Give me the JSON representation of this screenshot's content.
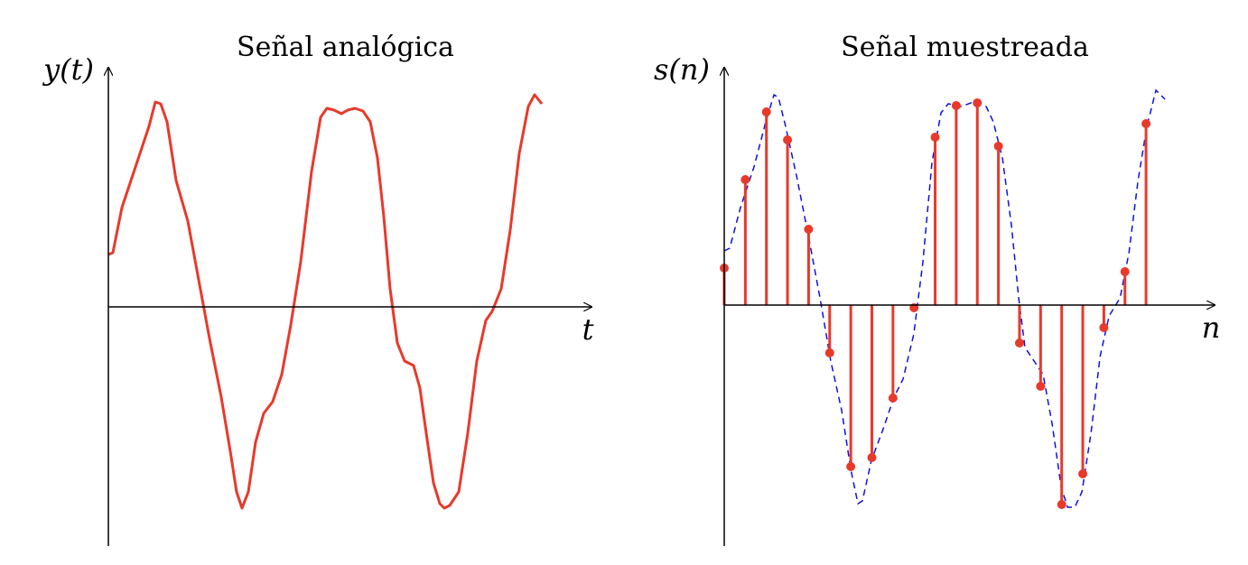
{
  "chart_data": [
    {
      "type": "line",
      "title": "Señal analógica",
      "ylabel": "y(t)",
      "xlabel": "t",
      "color": "#e8392b",
      "xlim": [
        0,
        5.35
      ],
      "ylim": [
        -2.65,
        2.65
      ],
      "x": [
        0,
        0.05,
        0.15,
        0.3,
        0.45,
        0.52,
        0.58,
        0.65,
        0.75,
        0.88,
        1.0,
        1.12,
        1.25,
        1.35,
        1.42,
        1.48,
        1.55,
        1.63,
        1.72,
        1.82,
        1.92,
        2.02,
        2.13,
        2.25,
        2.35,
        2.42,
        2.5,
        2.58,
        2.65,
        2.73,
        2.82,
        2.9,
        2.98,
        3.05,
        3.12,
        3.2,
        3.28,
        3.38,
        3.45,
        3.52,
        3.6,
        3.67,
        3.72,
        3.78,
        3.88,
        3.98,
        4.08,
        4.18,
        4.25,
        4.35,
        4.45,
        4.55,
        4.65,
        4.72,
        4.8
      ],
      "values": [
        0.58,
        0.6,
        1.1,
        1.55,
        2.0,
        2.27,
        2.25,
        2.05,
        1.4,
        0.95,
        0.3,
        -0.35,
        -1.0,
        -1.6,
        -2.05,
        -2.23,
        -2.05,
        -1.5,
        -1.18,
        -1.05,
        -0.75,
        -0.2,
        0.5,
        1.5,
        2.1,
        2.2,
        2.18,
        2.14,
        2.18,
        2.2,
        2.17,
        2.05,
        1.65,
        1.0,
        0.2,
        -0.4,
        -0.6,
        -0.65,
        -0.9,
        -1.4,
        -1.95,
        -2.18,
        -2.23,
        -2.2,
        -2.05,
        -1.4,
        -0.6,
        -0.15,
        -0.05,
        0.2,
        0.85,
        1.7,
        2.22,
        2.35,
        2.25
      ]
    },
    {
      "type": "stem",
      "title": "Señal muestreada",
      "ylabel": "s(n)",
      "xlabel": "n",
      "color": "#e8392b",
      "xlim": [
        0,
        23.25
      ],
      "ylim": [
        -2.67,
        2.63
      ],
      "values": [
        0.41,
        1.39,
        2.14,
        1.83,
        0.84,
        -0.53,
        -1.79,
        -1.69,
        -1.03,
        -0.03,
        1.86,
        2.21,
        2.24,
        1.76,
        -0.42,
        -0.9,
        -2.21,
        -1.87,
        -0.25,
        0.37,
        2.01
      ],
      "envelope": {
        "color": "#1010e0",
        "dashed": true,
        "x": [
          0,
          0.26,
          0.77,
          1.41,
          1.97,
          2.36,
          2.57,
          2.91,
          3.43,
          3.98,
          4.54,
          5.05,
          5.57,
          6.0,
          6.34,
          6.55,
          6.98,
          7.54,
          8.05,
          8.48,
          8.99,
          9.42,
          9.85,
          10.28,
          10.62,
          11.26,
          11.91,
          12.42,
          12.76,
          13.19,
          13.62,
          13.96,
          14.26,
          14.69,
          15.12,
          15.55,
          15.98,
          16.28,
          16.62,
          16.96,
          17.39,
          17.82,
          18.25,
          18.77,
          19.19,
          19.62,
          20.04,
          20.47,
          20.9
        ],
        "values": [
          0.6,
          0.63,
          1.08,
          1.53,
          2.03,
          2.33,
          2.3,
          1.98,
          1.43,
          0.78,
          0.08,
          -0.62,
          -1.17,
          -1.82,
          -2.2,
          -2.17,
          -1.72,
          -1.37,
          -1.02,
          -0.82,
          -0.32,
          0.48,
          1.58,
          2.13,
          2.23,
          2.2,
          2.26,
          2.2,
          2.03,
          1.63,
          0.88,
          0.08,
          -0.47,
          -0.62,
          -0.77,
          -1.32,
          -2.02,
          -2.24,
          -2.24,
          -2.07,
          -1.42,
          -0.57,
          -0.12,
          0.08,
          0.58,
          1.38,
          1.98,
          2.38,
          2.28
        ]
      }
    }
  ]
}
